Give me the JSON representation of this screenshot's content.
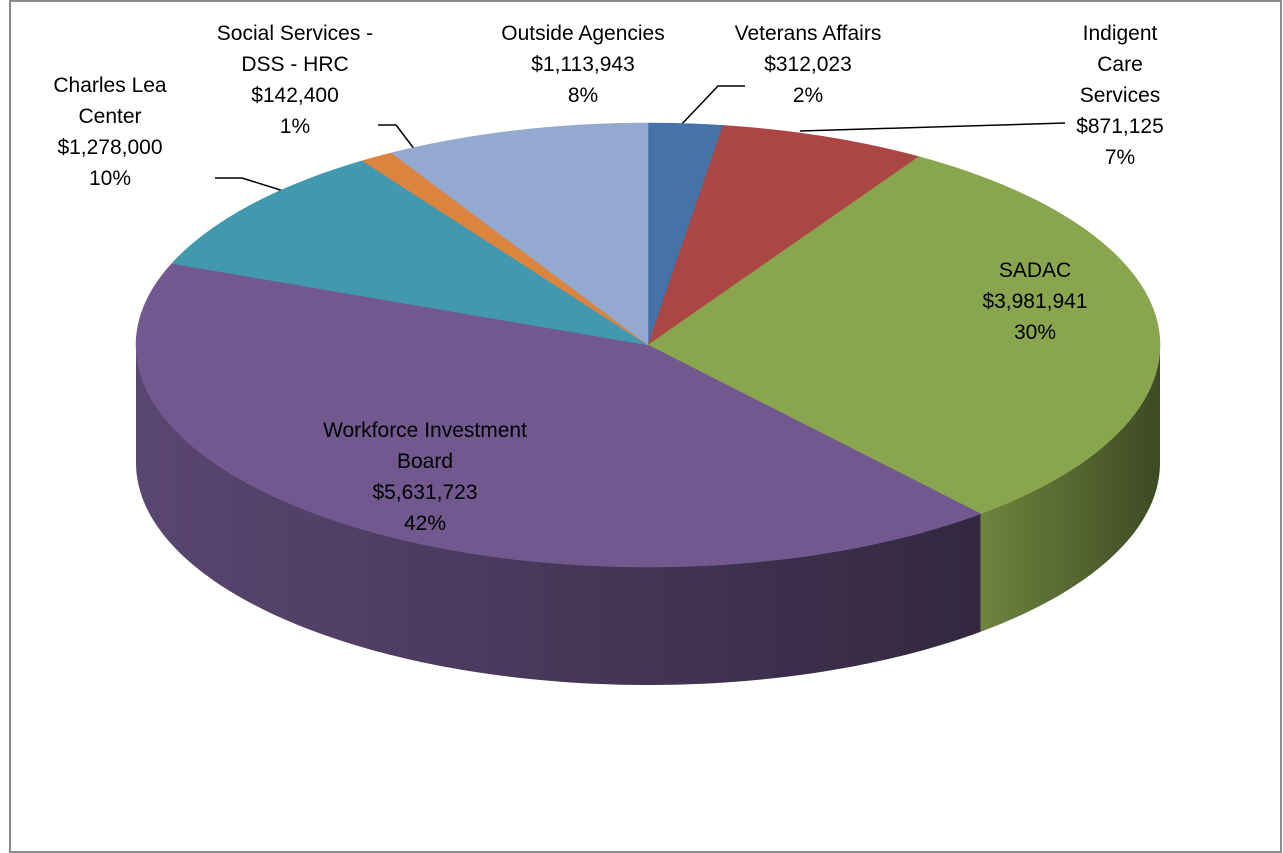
{
  "chart_data": {
    "type": "pie3d",
    "categories": [
      "Veterans Affairs",
      "Indigent Care Services",
      "SADAC",
      "Workforce Investment Board",
      "Charles Lea Center",
      "Social Services - DSS - HRC",
      "Outside Agencies"
    ],
    "values": [
      312023,
      871125,
      3981941,
      5631723,
      1278000,
      142400,
      1113943
    ],
    "value_labels": [
      "$312,023",
      "$871,125",
      "$3,981,941",
      "$5,631,723",
      "$1,278,000",
      "$142,400",
      "$1,113,943"
    ],
    "percent_labels": [
      "2%",
      "7%",
      "30%",
      "42%",
      "10%",
      "1%",
      "8%"
    ],
    "colors": [
      "#4572a7",
      "#aa4643",
      "#89a54e",
      "#71588f",
      "#4198af",
      "#db843d",
      "#93a9cf"
    ]
  }
}
